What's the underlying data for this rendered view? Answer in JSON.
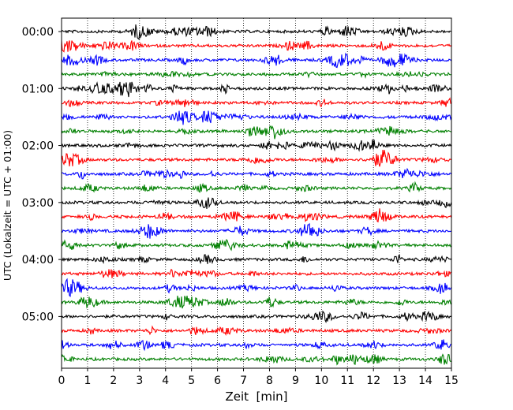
{
  "chart_data": {
    "type": "line",
    "xlabel": "Zeit  [min]",
    "ylabel": "UTC (Lokalzeit = UTC + 01:00)",
    "xlim": [
      0,
      15
    ],
    "x_ticks": [
      "0",
      "1",
      "2",
      "3",
      "4",
      "5",
      "6",
      "7",
      "8",
      "9",
      "10",
      "11",
      "12",
      "13",
      "14",
      "15"
    ],
    "y_ticks": [
      "00:00",
      "01:00",
      "02:00",
      "03:00",
      "04:00",
      "05:00"
    ],
    "grid": "x dotted",
    "trace_colors": [
      "#000000",
      "#ff0000",
      "#0000ff",
      "#008000"
    ],
    "traces_count": 24,
    "trace_interval_min": 15
  }
}
